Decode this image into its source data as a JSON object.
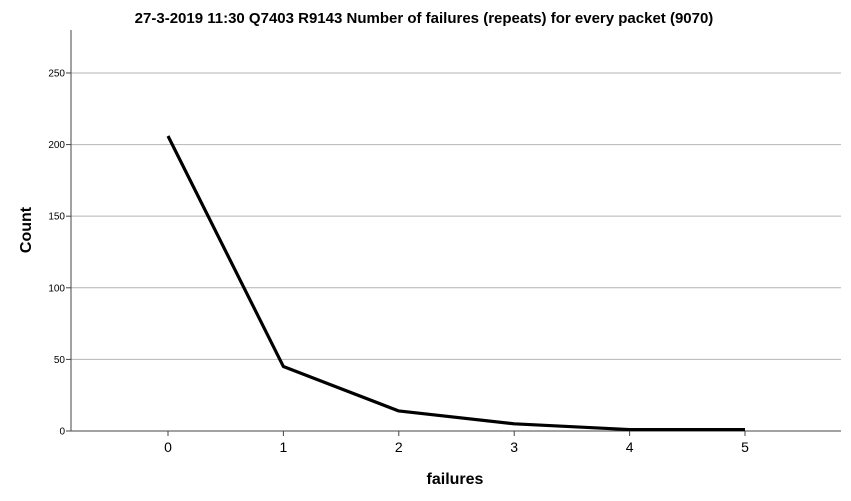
{
  "chart_data": {
    "type": "line",
    "title": "27-3-2019 11:30 Q7403 R9143 Number of failures (repeats) for every packet (9070)",
    "xlabel": "failures",
    "ylabel": "Count",
    "x": [
      "0",
      "1",
      "2",
      "3",
      "4",
      "5"
    ],
    "series": [
      {
        "values": [
          206,
          45,
          14,
          5,
          1,
          1
        ]
      }
    ],
    "ylim": [
      0,
      280
    ],
    "yticks": [
      0,
      50,
      100,
      150,
      200,
      250
    ],
    "grid": true,
    "legend": "none",
    "colors": {
      "line": "#000000",
      "grid": "#b4b4b4",
      "axis": "#444444"
    }
  }
}
